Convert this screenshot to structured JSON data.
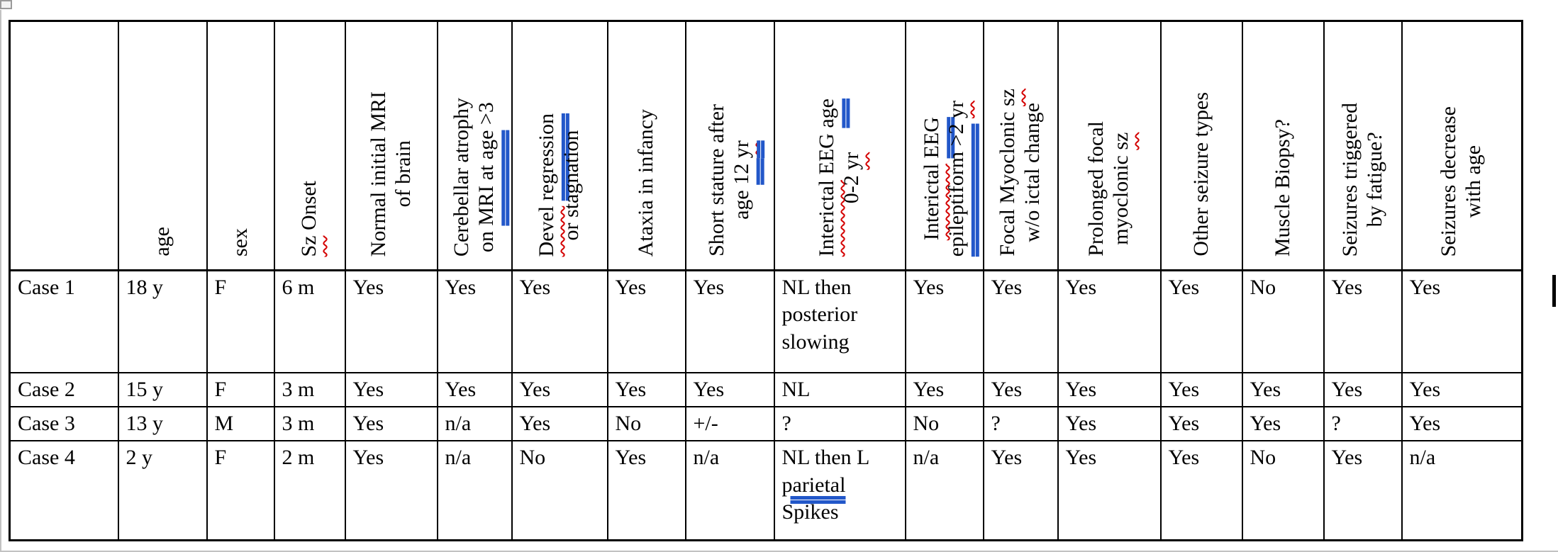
{
  "colors": {
    "background": "#ffffff",
    "table_border": "#000000",
    "spell_underline": "#d40000",
    "grammar_underline": "#2257c9",
    "page_edge": "#c2c2c2",
    "handle_border": "#9a9a9a",
    "caret": "#000000"
  },
  "icons": {
    "table_handle": "table-move-handle-icon",
    "caret": "text-caret"
  },
  "table": {
    "columns": [
      {
        "id": "case",
        "lines": []
      },
      {
        "id": "age",
        "lines": [
          [
            {
              "t": "age"
            }
          ]
        ]
      },
      {
        "id": "sex",
        "lines": [
          [
            {
              "t": "sex"
            }
          ]
        ]
      },
      {
        "id": "sz-onset",
        "lines": [
          [
            {
              "t": "Sz",
              "m": "spell"
            },
            {
              "t": " Onset"
            }
          ]
        ]
      },
      {
        "id": "normal-initial-mri",
        "lines": [
          [
            {
              "t": "Normal initial MRI"
            }
          ],
          [
            {
              "t": "of brain"
            }
          ]
        ]
      },
      {
        "id": "cerebellar-atrophy",
        "lines": [
          [
            {
              "t": "Cerebellar atrophy"
            }
          ],
          [
            {
              "t": "on "
            },
            {
              "t": "MRI at age",
              "m": "gram"
            },
            {
              "t": " >3"
            }
          ]
        ]
      },
      {
        "id": "devel-regression",
        "lines": [
          [
            {
              "t": "Devel",
              "m": "spell"
            },
            {
              "t": " "
            },
            {
              "t": "regression",
              "m": "gram"
            }
          ],
          [
            {
              "t": "or stagnation"
            }
          ]
        ]
      },
      {
        "id": "ataxia-infancy",
        "lines": [
          [
            {
              "t": "Ataxia in infancy"
            }
          ]
        ]
      },
      {
        "id": "short-stature",
        "lines": [
          [
            {
              "t": "Short stature after"
            }
          ],
          [
            {
              "t": "age "
            },
            {
              "t": "12 ",
              "m": "gram"
            },
            {
              "t": "yr",
              "m": "gram spell"
            }
          ]
        ]
      },
      {
        "id": "interictal-eeg-0-2",
        "lines": [
          [
            {
              "t": "Interictal",
              "m": "spell"
            },
            {
              "t": " EEG "
            },
            {
              "t": " age",
              "m": "gram"
            }
          ],
          [
            {
              "t": "0-2 "
            },
            {
              "t": "yr",
              "m": "spell"
            }
          ]
        ]
      },
      {
        "id": "interictal-eeg-epileptiform",
        "lines": [
          [
            {
              "t": "Interictal",
              "m": "spell"
            },
            {
              "t": " "
            },
            {
              "t": "EEG",
              "m": "gram"
            }
          ],
          [
            {
              "t": "epileptiform >2",
              "m": "gram"
            },
            {
              "t": " "
            },
            {
              "t": "yr",
              "m": "spell"
            }
          ]
        ]
      },
      {
        "id": "focal-myoclonic",
        "lines": [
          [
            {
              "t": "Focal Myoclonic "
            },
            {
              "t": "sz",
              "m": "spell"
            }
          ],
          [
            {
              "t": "w/o ictal change"
            }
          ]
        ]
      },
      {
        "id": "prolonged-focal-myoclonic",
        "lines": [
          [
            {
              "t": "Prolonged focal"
            }
          ],
          [
            {
              "t": "myoclonic "
            },
            {
              "t": "sz",
              "m": "spell"
            }
          ]
        ]
      },
      {
        "id": "other-seizure-types",
        "lines": [
          [
            {
              "t": "Other seizure types"
            }
          ]
        ]
      },
      {
        "id": "muscle-biopsy",
        "lines": [
          [
            {
              "t": "Muscle Biopsy?"
            }
          ]
        ]
      },
      {
        "id": "seizures-fatigue",
        "lines": [
          [
            {
              "t": "Seizures triggered"
            }
          ],
          [
            {
              "t": "by fatigue?"
            }
          ]
        ]
      },
      {
        "id": "seizures-decrease",
        "lines": [
          [
            {
              "t": "Seizures decrease"
            }
          ],
          [
            {
              "t": "with age"
            }
          ]
        ]
      }
    ],
    "rows": [
      {
        "label": "Case 1",
        "cells": [
          [
            {
              "t": "Case 1"
            }
          ],
          [
            {
              "t": "18 y"
            }
          ],
          [
            {
              "t": "F"
            }
          ],
          [
            {
              "t": "6 m"
            }
          ],
          [
            {
              "t": "Yes"
            }
          ],
          [
            {
              "t": "Yes"
            }
          ],
          [
            {
              "t": "Yes"
            }
          ],
          [
            {
              "t": "Yes"
            }
          ],
          [
            {
              "t": "Yes"
            }
          ],
          [
            {
              "t": "NL then posterior slowing"
            }
          ],
          [
            {
              "t": "Yes"
            }
          ],
          [
            {
              "t": "Yes"
            }
          ],
          [
            {
              "t": "Yes"
            }
          ],
          [
            {
              "t": "Yes"
            }
          ],
          [
            {
              "t": "No"
            }
          ],
          [
            {
              "t": "Yes"
            }
          ],
          [
            {
              "t": "Yes"
            }
          ]
        ]
      },
      {
        "label": "Case 2",
        "cells": [
          [
            {
              "t": "Case 2"
            }
          ],
          [
            {
              "t": "15 y"
            }
          ],
          [
            {
              "t": "F"
            }
          ],
          [
            {
              "t": "3 m"
            }
          ],
          [
            {
              "t": "Yes"
            }
          ],
          [
            {
              "t": "Yes"
            }
          ],
          [
            {
              "t": "Yes"
            }
          ],
          [
            {
              "t": "Yes"
            }
          ],
          [
            {
              "t": "Yes"
            }
          ],
          [
            {
              "t": "NL"
            }
          ],
          [
            {
              "t": "Yes"
            }
          ],
          [
            {
              "t": "Yes"
            }
          ],
          [
            {
              "t": "Yes"
            }
          ],
          [
            {
              "t": "Yes"
            }
          ],
          [
            {
              "t": "Yes"
            }
          ],
          [
            {
              "t": "Yes"
            }
          ],
          [
            {
              "t": "Yes"
            }
          ]
        ]
      },
      {
        "label": "Case 3",
        "cells": [
          [
            {
              "t": "Case 3"
            }
          ],
          [
            {
              "t": "13 y"
            }
          ],
          [
            {
              "t": "M"
            }
          ],
          [
            {
              "t": "3 m"
            }
          ],
          [
            {
              "t": "Yes"
            }
          ],
          [
            {
              "t": "n/a"
            }
          ],
          [
            {
              "t": "Yes"
            }
          ],
          [
            {
              "t": "No"
            }
          ],
          [
            {
              "t": "+/-"
            }
          ],
          [
            {
              "t": "?"
            }
          ],
          [
            {
              "t": "No"
            }
          ],
          [
            {
              "t": "?"
            }
          ],
          [
            {
              "t": "Yes"
            }
          ],
          [
            {
              "t": "Yes"
            }
          ],
          [
            {
              "t": "Yes"
            }
          ],
          [
            {
              "t": "?"
            }
          ],
          [
            {
              "t": "Yes"
            }
          ]
        ]
      },
      {
        "label": "Case 4",
        "cells": [
          [
            {
              "t": "Case 4"
            }
          ],
          [
            {
              "t": "2 y"
            }
          ],
          [
            {
              "t": "F"
            }
          ],
          [
            {
              "t": "2 m"
            }
          ],
          [
            {
              "t": "Yes"
            }
          ],
          [
            {
              "t": "n/a"
            }
          ],
          [
            {
              "t": "No"
            }
          ],
          [
            {
              "t": "Yes"
            }
          ],
          [
            {
              "t": "n/a"
            }
          ],
          [
            {
              "t": "NL then L "
            },
            {
              "t": "parietal",
              "m": "gram"
            },
            {
              "t": " Spikes"
            }
          ],
          [
            {
              "t": "n/a"
            }
          ],
          [
            {
              "t": "Yes"
            }
          ],
          [
            {
              "t": "Yes"
            }
          ],
          [
            {
              "t": "Yes"
            }
          ],
          [
            {
              "t": "No"
            }
          ],
          [
            {
              "t": "Yes"
            }
          ],
          [
            {
              "t": "n/a"
            }
          ]
        ]
      }
    ]
  }
}
